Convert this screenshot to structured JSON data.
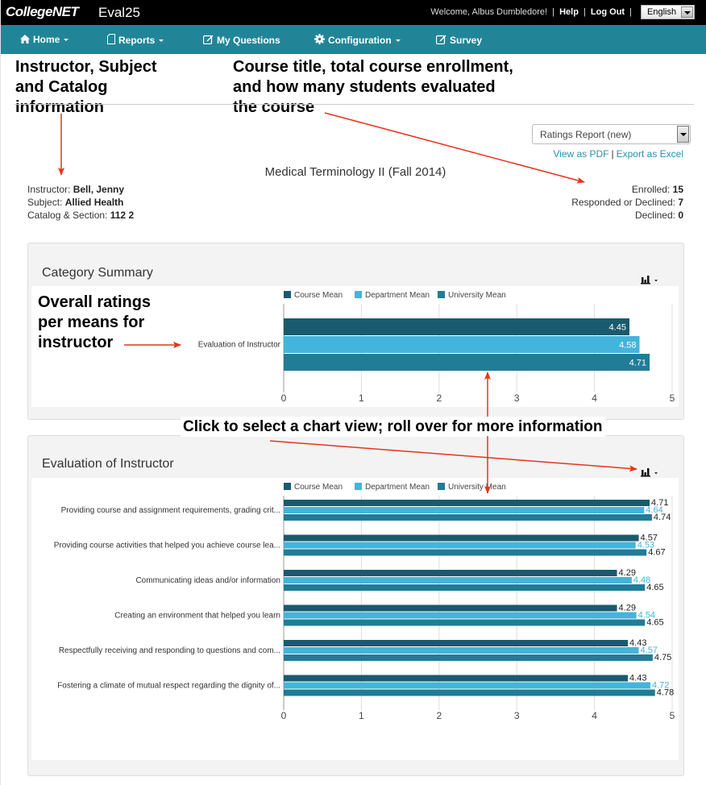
{
  "topbar": {
    "logo": "CollegeNET",
    "app_name": "Eval25",
    "welcome": "Welcome, Albus Dumbledore!",
    "help": "Help",
    "logout": "Log Out",
    "language": "English",
    "separator": "|"
  },
  "nav": {
    "items": [
      {
        "label": "Home",
        "icon": "home-icon",
        "dropdown": true
      },
      {
        "label": "Reports",
        "icon": "document-icon",
        "dropdown": true
      },
      {
        "label": "My Questions",
        "icon": "edit-icon",
        "dropdown": false
      },
      {
        "label": "Configuration",
        "icon": "gear-icon",
        "dropdown": true
      },
      {
        "label": "Survey",
        "icon": "edit-icon",
        "dropdown": false
      }
    ]
  },
  "annotations": {
    "instructor_info": [
      "Instructor, Subject",
      "and Catalog",
      "information"
    ],
    "course_info": [
      "Course title, total course enrollment,",
      "and how many students evaluated",
      "the course"
    ],
    "overall_ratings": [
      "Overall ratings",
      "per means for",
      "instructor"
    ],
    "chart_view": "Click to select a chart view; roll over for more information"
  },
  "report": {
    "selected_report": "Ratings Report (new)",
    "view_pdf": "View as PDF",
    "export_excel": "Export as Excel",
    "separator": "|",
    "course_title": "Medical Terminology II (Fall 2014)",
    "instructor_label": "Instructor:",
    "instructor": "Bell, Jenny",
    "subject_label": "Subject:",
    "subject": "Allied Health",
    "catalog_label": "Catalog & Section:",
    "catalog": "112 2",
    "enrolled_label": "Enrolled:",
    "enrolled": "15",
    "responded_label": "Responded or Declined:",
    "responded": "7",
    "declined_label": "Declined:",
    "declined": "0"
  },
  "panels": {
    "category_summary_title": "Category Summary",
    "evaluation_title": "Evaluation of Instructor"
  },
  "colors": {
    "course_mean": "#1a5a6e",
    "department_mean": "#43b5da",
    "university_mean": "#217c97",
    "nav": "#228597",
    "link": "#2a8fb0",
    "annotation_arrow": "#e8341c"
  },
  "chart_data": [
    {
      "type": "bar",
      "orientation": "horizontal",
      "title": "Category Summary",
      "categories": [
        "Evaluation of Instructor"
      ],
      "series": [
        {
          "name": "Course Mean",
          "values": [
            4.45
          ]
        },
        {
          "name": "Department Mean",
          "values": [
            4.58
          ]
        },
        {
          "name": "University Mean",
          "values": [
            4.71
          ]
        }
      ],
      "xlim": [
        0,
        5
      ],
      "xticks": [
        "0",
        "1",
        "2",
        "3",
        "4",
        "5"
      ],
      "legend": "top",
      "grid": true,
      "labels_inside": true
    },
    {
      "type": "bar",
      "orientation": "horizontal",
      "title": "Evaluation of Instructor",
      "categories": [
        "Providing course and assignment requirements, grading crit...",
        "Providing course activities that helped you achieve course lea...",
        "Communicating ideas and/or information",
        "Creating an environment that helped you learn",
        "Respectfully receiving and responding to questions and com...",
        "Fostering a climate of mutual respect regarding the dignity of..."
      ],
      "series": [
        {
          "name": "Course Mean",
          "values": [
            4.71,
            4.57,
            4.29,
            4.29,
            4.43,
            4.43
          ]
        },
        {
          "name": "Department Mean",
          "values": [
            4.64,
            4.53,
            4.48,
            4.54,
            4.57,
            4.72
          ]
        },
        {
          "name": "University Mean",
          "values": [
            4.74,
            4.67,
            4.65,
            4.65,
            4.75,
            4.78
          ]
        }
      ],
      "xlim": [
        0,
        5
      ],
      "xticks": [
        "0",
        "1",
        "2",
        "3",
        "4",
        "5"
      ],
      "legend": "top",
      "grid": true,
      "labels_inside": false
    }
  ]
}
